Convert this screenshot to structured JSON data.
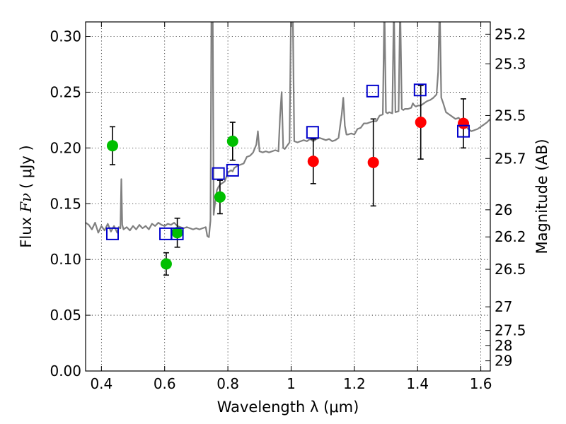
{
  "chart_data": {
    "type": "scatter",
    "xlabel": "Wavelength  λ (μm)",
    "ylabel_text": "Flux  ",
    "ylabel_symbol": "Fν",
    "ylabel_units": "( μJy )",
    "y2label": "Magnitude (AB)",
    "xlim": [
      0.35,
      1.63
    ],
    "ylim": [
      0.0,
      0.313
    ],
    "x_ticks": [
      0.4,
      0.6,
      0.8,
      1.0,
      1.2,
      1.4,
      1.6
    ],
    "x_tick_labels": [
      "0.4",
      "0.6",
      "0.8",
      "1",
      "1.2",
      "1.4",
      "1.6"
    ],
    "y_ticks": [
      0.0,
      0.05,
      0.1,
      0.15,
      0.2,
      0.25,
      0.3
    ],
    "y_tick_labels": [
      "0.00",
      "0.05",
      "0.10",
      "0.15",
      "0.20",
      "0.25",
      "0.30"
    ],
    "y2_ticks": [
      {
        "label": "25.2",
        "mag": 25.2
      },
      {
        "label": "25.3",
        "mag": 25.3
      },
      {
        "label": "25.5",
        "mag": 25.5
      },
      {
        "label": "25.7",
        "mag": 25.7
      },
      {
        "label": "26",
        "mag": 26.0
      },
      {
        "label": "26.2",
        "mag": 26.2
      },
      {
        "label": "26.5",
        "mag": 26.5
      },
      {
        "label": "27",
        "mag": 27.0
      },
      {
        "label": "27.5",
        "mag": 27.5
      },
      {
        "label": "28",
        "mag": 28.0
      },
      {
        "label": "29",
        "mag": 29.0
      }
    ],
    "grid": true,
    "colors": {
      "spectrum": "#808080",
      "green": "#00bf00",
      "red": "#ff0000",
      "model": "#0000cc",
      "errorbar": "#000000"
    },
    "series": [
      {
        "kind": "spectrum",
        "x": [
          0.35,
          0.36,
          0.37,
          0.38,
          0.39,
          0.4,
          0.41,
          0.42,
          0.43,
          0.44,
          0.45,
          0.455,
          0.46,
          0.463,
          0.466,
          0.47,
          0.48,
          0.49,
          0.5,
          0.51,
          0.52,
          0.53,
          0.54,
          0.55,
          0.56,
          0.57,
          0.58,
          0.59,
          0.6,
          0.61,
          0.62,
          0.63,
          0.64,
          0.65,
          0.66,
          0.67,
          0.68,
          0.69,
          0.7,
          0.71,
          0.72,
          0.73,
          0.735,
          0.74,
          0.745,
          0.748,
          0.752,
          0.755,
          0.76,
          0.765,
          0.77,
          0.775,
          0.78,
          0.79,
          0.8,
          0.81,
          0.815,
          0.82,
          0.83,
          0.84,
          0.85,
          0.86,
          0.87,
          0.88,
          0.89,
          0.895,
          0.9,
          0.91,
          0.92,
          0.93,
          0.94,
          0.95,
          0.96,
          0.965,
          0.97,
          0.975,
          0.98,
          0.99,
          0.995,
          1.0,
          1.005,
          1.01,
          1.02,
          1.03,
          1.04,
          1.05,
          1.06,
          1.07,
          1.08,
          1.09,
          1.1,
          1.11,
          1.12,
          1.13,
          1.14,
          1.15,
          1.16,
          1.165,
          1.17,
          1.175,
          1.18,
          1.19,
          1.2,
          1.21,
          1.22,
          1.23,
          1.24,
          1.25,
          1.26,
          1.27,
          1.28,
          1.29,
          1.295,
          1.3,
          1.305,
          1.31,
          1.32,
          1.325,
          1.33,
          1.34,
          1.345,
          1.35,
          1.355,
          1.36,
          1.37,
          1.38,
          1.385,
          1.39,
          1.395,
          1.4,
          1.41,
          1.42,
          1.43,
          1.44,
          1.45,
          1.46,
          1.465,
          1.47,
          1.475,
          1.48,
          1.49,
          1.5,
          1.51,
          1.52,
          1.53,
          1.54,
          1.55,
          1.56,
          1.57,
          1.58,
          1.59,
          1.6,
          1.61,
          1.62,
          1.63
        ],
        "y": [
          0.133,
          0.131,
          0.127,
          0.133,
          0.124,
          0.13,
          0.126,
          0.132,
          0.125,
          0.13,
          0.124,
          0.129,
          0.128,
          0.172,
          0.131,
          0.127,
          0.129,
          0.126,
          0.13,
          0.127,
          0.131,
          0.128,
          0.13,
          0.127,
          0.132,
          0.13,
          0.133,
          0.131,
          0.13,
          0.132,
          0.131,
          0.133,
          0.13,
          0.129,
          0.128,
          0.129,
          0.128,
          0.127,
          0.128,
          0.127,
          0.128,
          0.129,
          0.121,
          0.12,
          0.135,
          0.33,
          0.33,
          0.14,
          0.152,
          0.162,
          0.165,
          0.167,
          0.168,
          0.17,
          0.178,
          0.18,
          0.179,
          0.182,
          0.184,
          0.185,
          0.186,
          0.192,
          0.193,
          0.196,
          0.203,
          0.215,
          0.197,
          0.196,
          0.197,
          0.196,
          0.197,
          0.198,
          0.197,
          0.228,
          0.25,
          0.2,
          0.199,
          0.203,
          0.205,
          0.33,
          0.33,
          0.206,
          0.205,
          0.206,
          0.207,
          0.206,
          0.208,
          0.206,
          0.208,
          0.209,
          0.208,
          0.207,
          0.208,
          0.206,
          0.207,
          0.209,
          0.23,
          0.245,
          0.22,
          0.212,
          0.212,
          0.213,
          0.212,
          0.217,
          0.218,
          0.222,
          0.222,
          0.223,
          0.224,
          0.224,
          0.229,
          0.23,
          0.33,
          0.232,
          0.231,
          0.232,
          0.231,
          0.33,
          0.232,
          0.233,
          0.33,
          0.235,
          0.234,
          0.235,
          0.235,
          0.236,
          0.24,
          0.238,
          0.237,
          0.238,
          0.238,
          0.24,
          0.242,
          0.243,
          0.245,
          0.248,
          0.268,
          0.33,
          0.245,
          0.241,
          0.232,
          0.23,
          0.228,
          0.226,
          0.227,
          0.224,
          0.221,
          0.217,
          0.215,
          0.216,
          0.217,
          0.219,
          0.221,
          0.223,
          0.226
        ]
      },
      {
        "kind": "points",
        "color": "green",
        "x": [
          0.435,
          0.605,
          0.64,
          0.775,
          0.815
        ],
        "y": [
          0.202,
          0.096,
          0.124,
          0.156,
          0.206
        ],
        "yerr": [
          0.017,
          0.01,
          0.013,
          0.015,
          0.017
        ]
      },
      {
        "kind": "points",
        "color": "red",
        "x": [
          1.07,
          1.26,
          1.41,
          1.545
        ],
        "y": [
          0.188,
          0.187,
          0.223,
          0.222
        ],
        "yerr": [
          0.02,
          0.039,
          0.033,
          0.022
        ]
      },
      {
        "kind": "model_squares",
        "color": "model",
        "x": [
          0.435,
          0.603,
          0.64,
          0.77,
          0.815,
          1.068,
          1.258,
          1.408,
          1.545
        ],
        "y": [
          0.123,
          0.123,
          0.123,
          0.177,
          0.18,
          0.214,
          0.251,
          0.252,
          0.215
        ]
      }
    ]
  }
}
